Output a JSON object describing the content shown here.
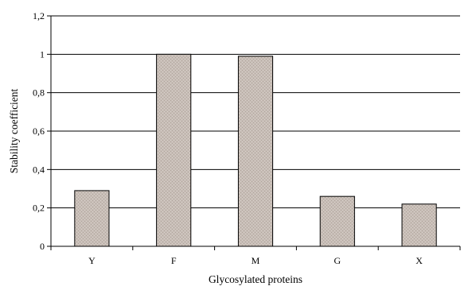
{
  "chart_data": {
    "type": "bar",
    "title": "",
    "xlabel": "Glycosylated proteins",
    "ylabel": "Stability coefficient",
    "categories": [
      "Y",
      "F",
      "M",
      "G",
      "X"
    ],
    "values": [
      0.29,
      1.0,
      0.99,
      0.26,
      0.22
    ],
    "ylim": [
      0,
      1.2
    ],
    "yticks": [
      0,
      0.2,
      0.4,
      0.6,
      0.8,
      1,
      1.2
    ],
    "ytick_labels": [
      "0",
      "0,2",
      "0,4",
      "0,6",
      "0,8",
      "1",
      "1,2"
    ],
    "grid": "horizontal",
    "legend": "none",
    "bar_color": "#c7bdb6",
    "bar_edge_color": "#000000"
  }
}
